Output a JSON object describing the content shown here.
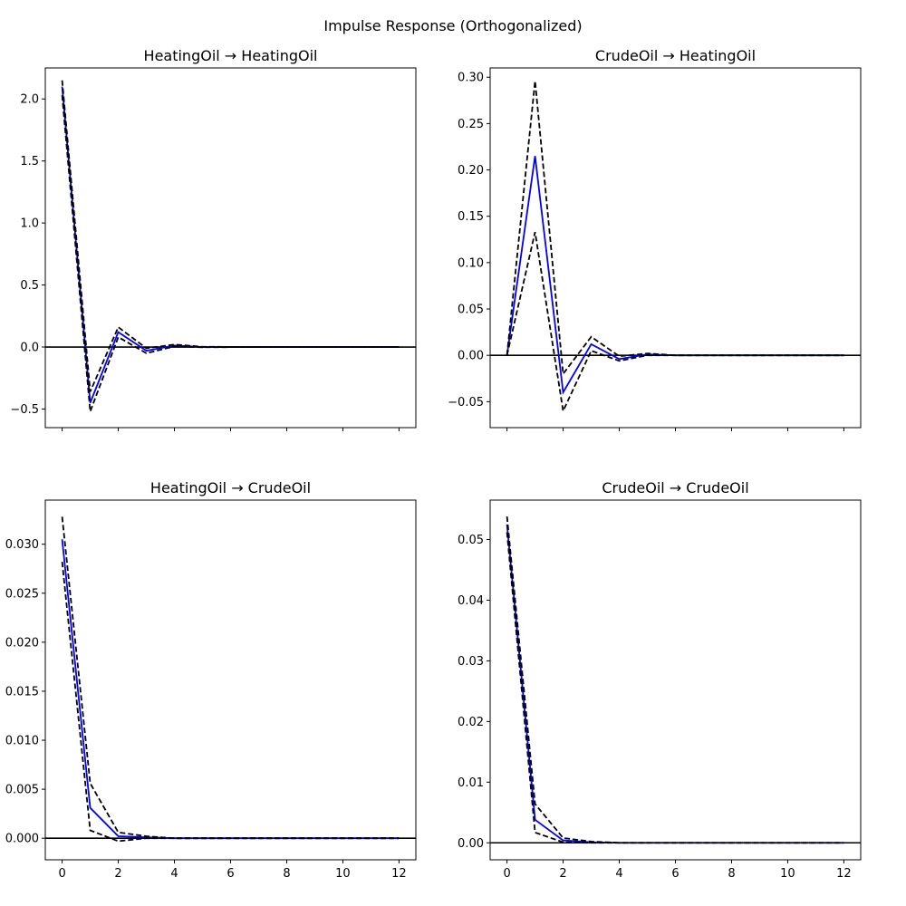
{
  "figure": {
    "suptitle": "Impulse Response (Orthogonalized)"
  },
  "colors": {
    "response": "#0000ff",
    "bands": "#000000",
    "zero_line": "#000000"
  },
  "chart_data": [
    {
      "type": "line",
      "title": "HeatingOil → HeatingOil",
      "x": [
        0,
        1,
        2,
        3,
        4,
        5,
        6,
        7,
        8,
        9,
        10,
        11,
        12
      ],
      "ylim": [
        -0.65,
        2.25
      ],
      "yticks": [
        -0.5,
        0.0,
        0.5,
        1.0,
        1.5,
        2.0
      ],
      "ytick_labels": [
        "−0.5",
        "0.0",
        "0.5",
        "1.0",
        "1.5",
        "2.0"
      ],
      "xticks": [
        0,
        2,
        4,
        6,
        8,
        10,
        12
      ],
      "xtick_labels": [],
      "series": [
        {
          "role": "response",
          "values": [
            2.1,
            -0.45,
            0.12,
            -0.03,
            0.012,
            0.0,
            0.0,
            0.0,
            0.0,
            0.0,
            0.0,
            0.0,
            0.0
          ]
        },
        {
          "role": "upper",
          "values": [
            2.15,
            -0.36,
            0.16,
            -0.01,
            0.02,
            0.002,
            0.001,
            0.0,
            0.0,
            0.0,
            0.0,
            0.0,
            0.0
          ]
        },
        {
          "role": "lower",
          "values": [
            2.03,
            -0.52,
            0.08,
            -0.05,
            0.005,
            -0.002,
            -0.001,
            0.0,
            0.0,
            0.0,
            0.0,
            0.0,
            0.0
          ]
        }
      ]
    },
    {
      "type": "line",
      "title": "CrudeOil → HeatingOil",
      "x": [
        0,
        1,
        2,
        3,
        4,
        5,
        6,
        7,
        8,
        9,
        10,
        11,
        12
      ],
      "ylim": [
        -0.078,
        0.31
      ],
      "yticks": [
        -0.05,
        0.0,
        0.05,
        0.1,
        0.15,
        0.2,
        0.25,
        0.3
      ],
      "ytick_labels": [
        "−0.05",
        "0.00",
        "0.05",
        "0.10",
        "0.15",
        "0.20",
        "0.25",
        "0.30"
      ],
      "xticks": [
        0,
        2,
        4,
        6,
        8,
        10,
        12
      ],
      "xtick_labels": [],
      "series": [
        {
          "role": "response",
          "values": [
            0.0,
            0.215,
            -0.04,
            0.012,
            -0.004,
            0.001,
            0.0,
            0.0,
            0.0,
            0.0,
            0.0,
            0.0,
            0.0
          ]
        },
        {
          "role": "upper",
          "values": [
            0.0,
            0.296,
            -0.02,
            0.02,
            -0.001,
            0.002,
            0.0,
            0.0,
            0.0,
            0.0,
            0.0,
            0.0,
            0.0
          ]
        },
        {
          "role": "lower",
          "values": [
            0.0,
            0.133,
            -0.06,
            0.005,
            -0.006,
            0.0,
            0.0,
            0.0,
            0.0,
            0.0,
            0.0,
            0.0,
            0.0
          ]
        }
      ]
    },
    {
      "type": "line",
      "title": "HeatingOil → CrudeOil",
      "x": [
        0,
        1,
        2,
        3,
        4,
        5,
        6,
        7,
        8,
        9,
        10,
        11,
        12
      ],
      "ylim": [
        -0.0022,
        0.0345
      ],
      "yticks": [
        0.0,
        0.005,
        0.01,
        0.015,
        0.02,
        0.025,
        0.03
      ],
      "ytick_labels": [
        "0.000",
        "0.005",
        "0.010",
        "0.015",
        "0.020",
        "0.025",
        "0.030"
      ],
      "xticks": [
        0,
        2,
        4,
        6,
        8,
        10,
        12
      ],
      "xtick_labels": [
        "0",
        "2",
        "4",
        "6",
        "8",
        "10",
        "12"
      ],
      "series": [
        {
          "role": "response",
          "values": [
            0.0305,
            0.0031,
            0.0002,
            0.0001,
            0.0,
            0.0,
            0.0,
            0.0,
            0.0,
            0.0,
            0.0,
            0.0,
            0.0
          ]
        },
        {
          "role": "upper",
          "values": [
            0.0328,
            0.0056,
            0.0006,
            0.0002,
            0.0,
            0.0,
            0.0,
            0.0,
            0.0,
            0.0,
            0.0,
            0.0,
            0.0
          ]
        },
        {
          "role": "lower",
          "values": [
            0.0282,
            0.0008,
            -0.0003,
            0.0,
            0.0,
            0.0,
            0.0,
            0.0,
            0.0,
            0.0,
            0.0,
            0.0,
            0.0
          ]
        }
      ]
    },
    {
      "type": "line",
      "title": "CrudeOil → CrudeOil",
      "x": [
        0,
        1,
        2,
        3,
        4,
        5,
        6,
        7,
        8,
        9,
        10,
        11,
        12
      ],
      "ylim": [
        -0.0028,
        0.0565
      ],
      "yticks": [
        0.0,
        0.01,
        0.02,
        0.03,
        0.04,
        0.05
      ],
      "ytick_labels": [
        "0.00",
        "0.01",
        "0.02",
        "0.03",
        "0.04",
        "0.05"
      ],
      "xticks": [
        0,
        2,
        4,
        6,
        8,
        10,
        12
      ],
      "xtick_labels": [
        "0",
        "2",
        "4",
        "6",
        "8",
        "10",
        "12"
      ],
      "series": [
        {
          "role": "response",
          "values": [
            0.0525,
            0.0038,
            0.0004,
            0.0001,
            0.0,
            0.0,
            0.0,
            0.0,
            0.0,
            0.0,
            0.0,
            0.0,
            0.0
          ]
        },
        {
          "role": "upper",
          "values": [
            0.0538,
            0.0064,
            0.0008,
            0.0002,
            0.0,
            0.0,
            0.0,
            0.0,
            0.0,
            0.0,
            0.0,
            0.0,
            0.0
          ]
        },
        {
          "role": "lower",
          "values": [
            0.0512,
            0.0017,
            0.0001,
            0.0,
            0.0,
            0.0,
            0.0,
            0.0,
            0.0,
            0.0,
            0.0,
            0.0,
            0.0
          ]
        }
      ]
    }
  ]
}
